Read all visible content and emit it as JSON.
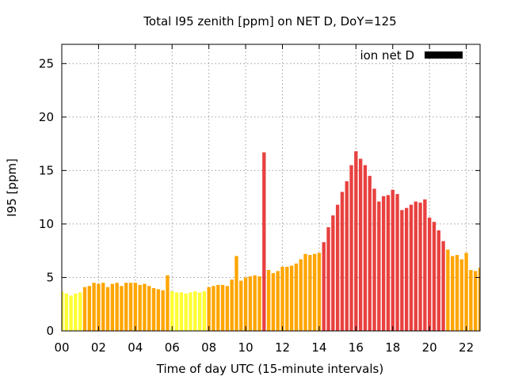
{
  "chart_data": {
    "type": "bar",
    "title": "Total I95 zenith [ppm] on NET D, DoY=125",
    "xlabel": "Time of day UTC (15-minute intervals)",
    "ylabel": "I95 [ppm]",
    "xlim": [
      0,
      22.75
    ],
    "ylim": [
      0,
      26.8
    ],
    "x_ticks": [
      "00",
      "02",
      "04",
      "06",
      "08",
      "10",
      "12",
      "14",
      "16",
      "18",
      "20",
      "22"
    ],
    "y_ticks": [
      "0",
      "5",
      "10",
      "15",
      "20",
      "25"
    ],
    "grid": true,
    "legend": {
      "position": "top-right",
      "label": "ion net D",
      "color": "#000000"
    },
    "bar_step_hours": 0.25,
    "colors": {
      "yellow": "#ffff33",
      "orange": "#ffa500",
      "red": "#e8413f"
    },
    "series": [
      {
        "name": "ion net D",
        "values": [
          3.7,
          3.5,
          3.3,
          3.5,
          3.6,
          4.1,
          4.2,
          4.5,
          4.4,
          4.5,
          4.1,
          4.4,
          4.5,
          4.2,
          4.5,
          4.5,
          4.5,
          4.3,
          4.4,
          4.2,
          4.0,
          3.9,
          3.8,
          5.2,
          3.7,
          3.6,
          3.6,
          3.5,
          3.6,
          3.7,
          3.6,
          3.7,
          4.1,
          4.2,
          4.3,
          4.3,
          4.2,
          4.8,
          7.0,
          4.7,
          5.0,
          5.1,
          5.2,
          5.1,
          16.7,
          5.7,
          5.4,
          5.6,
          6.0,
          6.0,
          6.1,
          6.3,
          6.7,
          7.2,
          7.1,
          7.2,
          7.3,
          8.3,
          9.7,
          10.8,
          11.8,
          13.0,
          14.0,
          15.5,
          16.8,
          16.1,
          15.5,
          14.5,
          13.3,
          12.1,
          12.6,
          12.7,
          13.2,
          12.8,
          11.3,
          11.5,
          11.8,
          12.1,
          12.0,
          12.3,
          10.6,
          10.2,
          9.4,
          8.4,
          7.6,
          7.0,
          7.1,
          6.7,
          7.3,
          5.7,
          5.6,
          5.9
        ],
        "colors": [
          "yellow",
          "yellow",
          "yellow",
          "yellow",
          "yellow",
          "orange",
          "orange",
          "orange",
          "orange",
          "orange",
          "orange",
          "orange",
          "orange",
          "orange",
          "orange",
          "orange",
          "orange",
          "orange",
          "orange",
          "orange",
          "orange",
          "orange",
          "orange",
          "orange",
          "yellow",
          "yellow",
          "yellow",
          "yellow",
          "yellow",
          "yellow",
          "yellow",
          "yellow",
          "orange",
          "orange",
          "orange",
          "orange",
          "orange",
          "orange",
          "orange",
          "orange",
          "orange",
          "orange",
          "orange",
          "orange",
          "red",
          "orange",
          "orange",
          "orange",
          "orange",
          "orange",
          "orange",
          "orange",
          "orange",
          "orange",
          "orange",
          "orange",
          "orange",
          "red",
          "red",
          "red",
          "red",
          "red",
          "red",
          "red",
          "red",
          "red",
          "red",
          "red",
          "red",
          "red",
          "red",
          "red",
          "red",
          "red",
          "red",
          "red",
          "red",
          "red",
          "red",
          "red",
          "red",
          "red",
          "red",
          "red",
          "orange",
          "orange",
          "orange",
          "orange",
          "orange",
          "orange",
          "orange",
          "orange"
        ]
      }
    ]
  }
}
